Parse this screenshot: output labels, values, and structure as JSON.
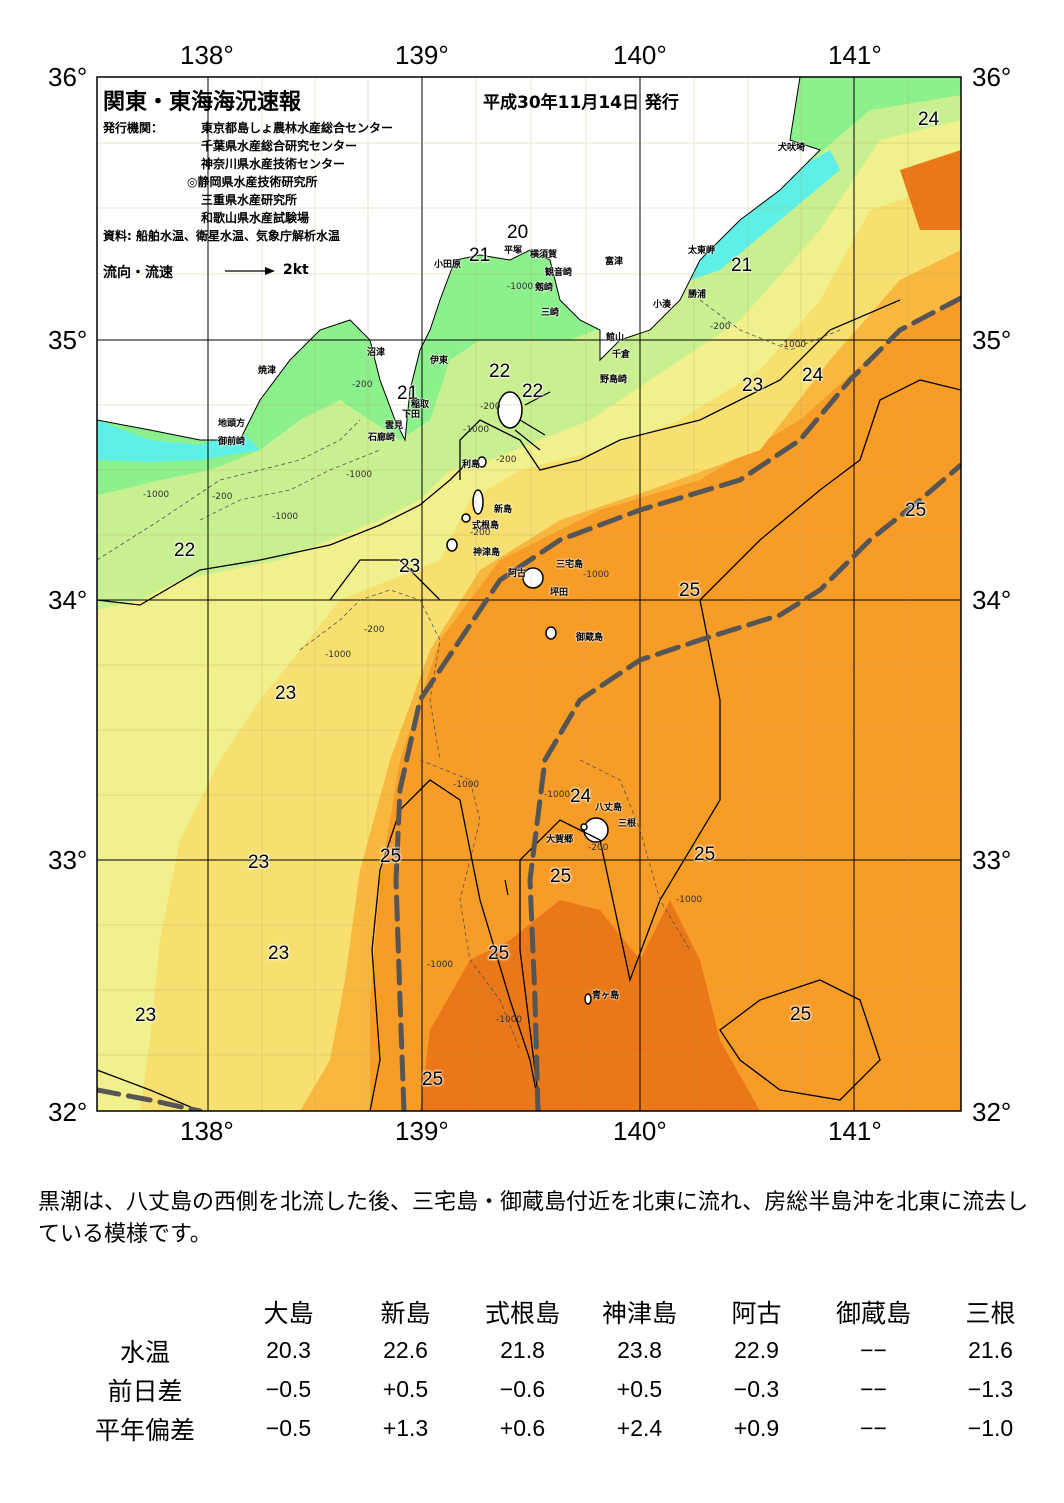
{
  "map": {
    "title": "関東・東海海況速報",
    "date": "平成30年11月14日 発行",
    "issuer_label": "発行機関：",
    "issuers": [
      "東京都島しょ農林水産総合センター",
      "千葉県水産総合研究センター",
      "神奈川県水産技術センター",
      "◎静岡県水産技術研究所",
      "三重県水産研究所",
      "和歌山県水産試験場"
    ],
    "source": "資料: 船舶水温、衛星水温、気象庁解析水温",
    "flow_label": "流向・流速",
    "flow_scale": "2kt",
    "lon_labels": [
      "138°",
      "139°",
      "140°",
      "141°"
    ],
    "lat_labels": [
      "36°",
      "35°",
      "34°",
      "33°",
      "32°"
    ],
    "isotherms": [
      "24",
      "20",
      "21",
      "21",
      "21",
      "22",
      "22",
      "23",
      "24",
      "25",
      "22",
      "23",
      "25",
      "23",
      "24",
      "25",
      "25",
      "23",
      "23",
      "25",
      "25",
      "23",
      "25",
      "25"
    ],
    "places": [
      "犬吠埼",
      "横須賀",
      "平塚",
      "富津",
      "太東岬",
      "小田原",
      "観音崎",
      "剱崎",
      "勝浦",
      "小湊",
      "三崎",
      "館山",
      "千倉",
      "沼津",
      "伊東",
      "野島崎",
      "焼津",
      "稲取",
      "下田",
      "雲見",
      "石廊崎",
      "地頭方",
      "御前崎",
      "利島",
      "新島",
      "式根島",
      "神津島",
      "三宅島",
      "阿古",
      "坪田",
      "御蔵島",
      "八丈島",
      "三根",
      "大賀郷",
      "青ヶ島"
    ],
    "depths": [
      "-1000",
      "-200",
      "-200",
      "-1000",
      "-200",
      "-1000",
      "-200",
      "-1000",
      "-200",
      "-1000",
      "-1000",
      "-200",
      "-1000",
      "-1000",
      "-200",
      "-1000",
      "-1000",
      "-1000",
      "-1000",
      "-200",
      "-1000"
    ],
    "colors": {
      "t19": "#5ef0e6",
      "t20": "#8cf08c",
      "t21": "#c8f090",
      "t22": "#f0f08c",
      "t23": "#f8e070",
      "t24": "#f8b840",
      "t25": "#f89c28",
      "t26": "#ea7818",
      "land": "#ffffff",
      "kuroshio": "#555555"
    }
  },
  "summary": "黒潮は、八丈島の西側を北流した後、三宅島・御蔵島付近を北東に流れ、房総半島沖を北東に流去している模様です。",
  "table": {
    "columns": [
      "大島",
      "新島",
      "式根島",
      "神津島",
      "阿古",
      "御蔵島",
      "三根"
    ],
    "rows": [
      {
        "label": "水温",
        "values": [
          "20.3",
          "22.6",
          "21.8",
          "23.8",
          "22.9",
          "−−",
          "21.6"
        ]
      },
      {
        "label": "前日差",
        "values": [
          "−0.5",
          "+0.5",
          "−0.6",
          "+0.5",
          "−0.3",
          "−−",
          "−1.3"
        ]
      },
      {
        "label": "平年偏差",
        "values": [
          "−0.5",
          "+1.3",
          "+0.6",
          "+2.4",
          "+0.9",
          "−−",
          "−1.0"
        ]
      }
    ]
  }
}
